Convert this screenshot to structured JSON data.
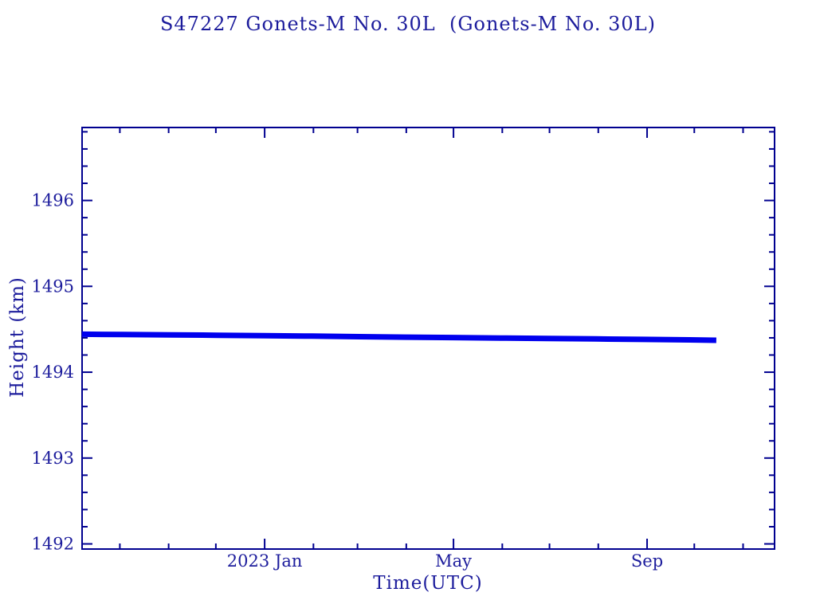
{
  "colors": {
    "axis": "#000090",
    "text": "#1c1c9c",
    "line": "#0000ee",
    "background": "#ffffff"
  },
  "chart_data": {
    "type": "line",
    "title": "S47227 Gonets-M No. 30L  (Gonets-M No. 30L)",
    "xlabel": "Time(UTC)",
    "ylabel": "Height (km)",
    "grid": false,
    "legend": "none",
    "x_unit": "days relative to 2023 Jan 1",
    "xlim": [
      -116,
      324
    ],
    "ylim": [
      1491.94,
      1496.85
    ],
    "x_major_ticks": [
      {
        "d": 0,
        "label": "2023 Jan"
      },
      {
        "d": 120,
        "label": "May"
      },
      {
        "d": 243,
        "label": "Sep"
      }
    ],
    "x_minor_ticks": [
      -92,
      -61,
      -31,
      31,
      59,
      90,
      151,
      181,
      212,
      273,
      304
    ],
    "y_major_ticks": [
      {
        "value": 1492,
        "label": "1492"
      },
      {
        "value": 1493,
        "label": "1493"
      },
      {
        "value": 1494,
        "label": "1494"
      },
      {
        "value": 1495,
        "label": "1495"
      },
      {
        "value": 1496,
        "label": "1496"
      }
    ],
    "y_minor_tick_step": 0.2,
    "series": [
      {
        "name": "height_km",
        "color": "#0000ee",
        "stroke_width_px": 7,
        "points": [
          [
            -116,
            1494.442
          ],
          [
            -90,
            1494.439
          ],
          [
            -60,
            1494.435
          ],
          [
            -30,
            1494.43
          ],
          [
            0,
            1494.425
          ],
          [
            30,
            1494.42
          ],
          [
            60,
            1494.414
          ],
          [
            90,
            1494.408
          ],
          [
            120,
            1494.403
          ],
          [
            150,
            1494.398
          ],
          [
            180,
            1494.393
          ],
          [
            210,
            1494.388
          ],
          [
            240,
            1494.382
          ],
          [
            270,
            1494.376
          ],
          [
            287,
            1494.372
          ]
        ]
      }
    ]
  }
}
